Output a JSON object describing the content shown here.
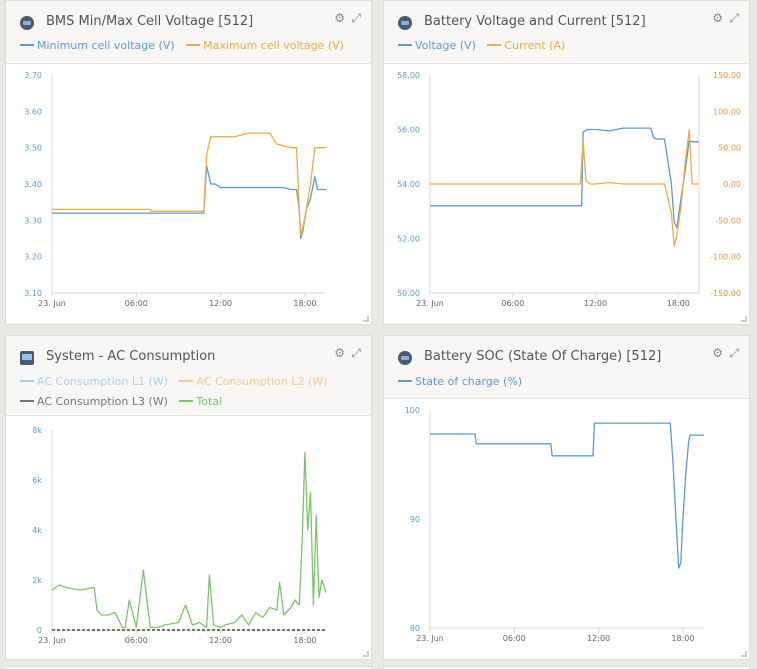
{
  "colors": {
    "blue": "#5b9bd5",
    "orange": "#f0ad3c",
    "green": "#7cc66a",
    "light_blue": "#a9d0f2",
    "light_orange": "#f6c894",
    "gray": "#777777",
    "axis_text": "#5b9bd5",
    "axis_text_right": "#e8963a"
  },
  "panels": [
    {
      "title": "BMS Min/Max Cell Voltage [512]",
      "icon": "battery-icon",
      "legend": [
        {
          "label": "Minimum cell voltage (V)",
          "color": "#5b9bd5"
        },
        {
          "label": "Maximum cell voltage (V)",
          "color": "#f0ad3c"
        }
      ]
    },
    {
      "title": "Battery Voltage and Current [512]",
      "icon": "battery-icon",
      "legend": [
        {
          "label": "Voltage (V)",
          "color": "#5b9bd5"
        },
        {
          "label": "Current (A)",
          "color": "#f0ad3c"
        }
      ]
    },
    {
      "title": "System - AC Consumption",
      "icon": "monitor-icon",
      "legend": [
        {
          "label": "AC Consumption L1 (W)",
          "color": "#a9d0f2"
        },
        {
          "label": "AC Consumption L2 (W)",
          "color": "#f6c894"
        },
        {
          "label": "AC Consumption L3 (W)",
          "color": "#777777"
        },
        {
          "label": "Total",
          "color": "#7cc66a"
        }
      ]
    },
    {
      "title": "Battery SOC (State Of Charge) [512]",
      "icon": "battery-icon",
      "legend": [
        {
          "label": "State of charge (%)",
          "color": "#5b9bd5"
        }
      ]
    }
  ],
  "chart_data": [
    {
      "type": "line",
      "x_ticks": [
        "23. Jun",
        "06:00",
        "12:00",
        "18:00"
      ],
      "y_ticks": [
        "3.70",
        "3.60",
        "3.50",
        "3.40",
        "3.30",
        "3.20",
        "3.10"
      ],
      "ylim": [
        3.1,
        3.7
      ],
      "x_range_hours": [
        0,
        19.5
      ],
      "series": [
        {
          "name": "Minimum cell voltage (V)",
          "color": "#5b9bd5",
          "x": [
            0,
            7,
            10.8,
            11.0,
            11.3,
            11.6,
            12,
            13,
            14,
            15,
            16,
            16.5,
            17,
            17.4,
            17.6,
            17.7,
            17.85,
            18.1,
            18.4,
            18.7,
            18.9,
            19.2,
            19.5
          ],
          "y": [
            3.32,
            3.32,
            3.32,
            3.45,
            3.4,
            3.4,
            3.39,
            3.39,
            3.39,
            3.39,
            3.39,
            3.39,
            3.385,
            3.385,
            3.33,
            3.25,
            3.27,
            3.33,
            3.36,
            3.42,
            3.385,
            3.385,
            3.385
          ]
        },
        {
          "name": "Maximum cell voltage (V)",
          "color": "#f0ad3c",
          "x": [
            0,
            7,
            7.05,
            10.8,
            11.0,
            11.3,
            12,
            13,
            14,
            15,
            15.5,
            16,
            17,
            17.4,
            17.6,
            17.7,
            17.85,
            18.1,
            18.4,
            18.7,
            18.9,
            19.2,
            19.5
          ],
          "y": [
            3.33,
            3.33,
            3.325,
            3.325,
            3.48,
            3.53,
            3.53,
            3.53,
            3.54,
            3.54,
            3.54,
            3.51,
            3.5,
            3.5,
            3.33,
            3.26,
            3.28,
            3.33,
            3.4,
            3.5,
            3.5,
            3.5,
            3.5
          ]
        }
      ]
    },
    {
      "type": "line",
      "x_ticks": [
        "23. Jun",
        "06:00",
        "12:00",
        "18:00"
      ],
      "y_ticks": [
        "58.00",
        "56.00",
        "54.00",
        "52.00",
        "50.00"
      ],
      "y_ticks_right": [
        "150.00",
        "100.00",
        "50.00",
        "0.00",
        "-50.00",
        "-100.00",
        "-150.00"
      ],
      "ylim": [
        50,
        58
      ],
      "ylim_right": [
        -150,
        150
      ],
      "x_range_hours": [
        0,
        19.5
      ],
      "series": [
        {
          "name": "Voltage (V)",
          "color": "#5b9bd5",
          "axis": "left",
          "x": [
            0,
            11,
            11.1,
            11.4,
            12,
            13,
            14,
            15,
            16,
            16.2,
            16.4,
            17,
            17.5,
            17.7,
            17.9,
            18.2,
            18.5,
            18.8,
            19.0,
            19.5
          ],
          "y": [
            53.2,
            53.2,
            55.9,
            56.0,
            56.0,
            55.95,
            56.05,
            56.05,
            56.05,
            55.7,
            55.65,
            55.65,
            54.0,
            52.6,
            52.4,
            53.5,
            54.5,
            55.6,
            55.55,
            55.55
          ]
        },
        {
          "name": "Current (A)",
          "color": "#f0ad3c",
          "axis": "right",
          "x": [
            0,
            10.9,
            11.1,
            11.3,
            11.6,
            12,
            13,
            14,
            15,
            16,
            16.5,
            17,
            17.5,
            17.7,
            17.9,
            18.2,
            18.5,
            18.8,
            19.0,
            19.5
          ],
          "y": [
            0,
            0,
            60,
            5,
            0,
            0,
            2,
            0,
            0,
            0,
            0,
            0,
            -40,
            -85,
            -70,
            -30,
            30,
            75,
            0,
            0
          ]
        }
      ]
    },
    {
      "type": "line",
      "x_ticks": [
        "23. Jun",
        "06:00",
        "12:00",
        "18:00"
      ],
      "y_ticks": [
        "8k",
        "6k",
        "4k",
        "2k",
        "0"
      ],
      "ylim": [
        0,
        8000
      ],
      "x_range_hours": [
        0,
        19.5
      ],
      "series": [
        {
          "name": "Total",
          "color": "#7cc66a",
          "x": [
            0,
            0.5,
            1,
            2,
            3,
            3.2,
            3.5,
            4,
            4.5,
            5,
            5.2,
            5.5,
            6,
            6.5,
            6.8,
            7,
            7.2,
            7.5,
            8,
            9,
            9.5,
            10,
            10.5,
            11,
            11.2,
            11.5,
            12,
            12.3,
            13,
            13.5,
            14,
            14.5,
            15,
            15.5,
            16,
            16.2,
            16.5,
            17,
            17.3,
            17.6,
            17.8,
            18,
            18.2,
            18.4,
            18.6,
            18.8,
            19,
            19.2,
            19.5
          ],
          "y": [
            1600,
            1800,
            1700,
            1600,
            1700,
            800,
            600,
            600,
            700,
            100,
            100,
            1200,
            100,
            2400,
            1000,
            100,
            100,
            100,
            200,
            300,
            1000,
            200,
            300,
            100,
            2200,
            200,
            100,
            200,
            300,
            600,
            200,
            700,
            500,
            900,
            800,
            1900,
            600,
            900,
            1200,
            1000,
            3500,
            7100,
            4000,
            5500,
            1000,
            4600,
            1300,
            2000,
            1500
          ]
        },
        {
          "name": "AC Consumption L3 (W)",
          "color": "#777777",
          "x": [
            0,
            19.5
          ],
          "y": [
            0,
            0
          ]
        }
      ]
    },
    {
      "type": "line",
      "x_ticks": [
        "23. Jun",
        "06:00",
        "12:00",
        "18:00"
      ],
      "y_ticks": [
        "100",
        "90",
        "80"
      ],
      "ylim": [
        80,
        100
      ],
      "x_range_hours": [
        0,
        19.5
      ],
      "series": [
        {
          "name": "State of charge (%)",
          "color": "#5b9bd5",
          "x": [
            0,
            3.2,
            3.3,
            8.6,
            8.7,
            11.6,
            11.7,
            17.1,
            17.3,
            17.5,
            17.7,
            17.85,
            18.0,
            18.2,
            18.4,
            18.5,
            18.8,
            19.5
          ],
          "y": [
            97.8,
            97.8,
            96.9,
            96.9,
            95.8,
            95.8,
            98.8,
            98.8,
            95,
            90,
            85.5,
            86,
            90,
            94,
            97,
            97.7,
            97.7,
            97.7
          ]
        }
      ]
    }
  ]
}
